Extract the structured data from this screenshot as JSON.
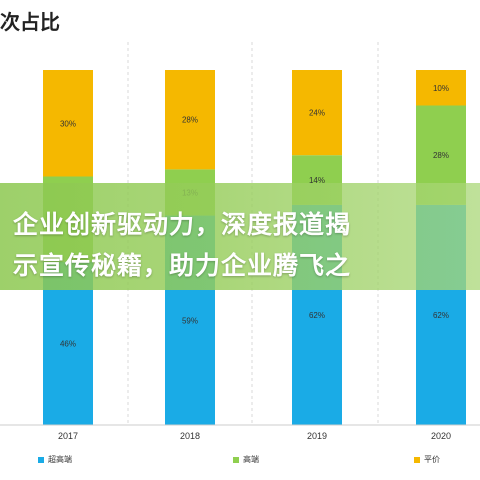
{
  "chart_data": {
    "type": "bar",
    "stacked": true,
    "title": "次占比",
    "categories": [
      "2017",
      "2018",
      "2019",
      "2020"
    ],
    "series": [
      {
        "name": "超高端",
        "color": "#1aabe6",
        "values": [
          46,
          59,
          62,
          62
        ]
      },
      {
        "name": "高端",
        "color": "#8fcf4f",
        "values": [
          null,
          13,
          14,
          28
        ]
      },
      {
        "name": "平价",
        "color": "#f5b800",
        "values": [
          30,
          28,
          24,
          10
        ]
      }
    ],
    "data_labels": {
      "超高端": [
        "46%",
        "59%",
        "62%",
        "62%"
      ],
      "高端": [
        "",
        "13%",
        "14%",
        "28%"
      ],
      "平价": [
        "30%",
        "28%",
        "24%",
        "10%"
      ]
    },
    "grid": "vertical-dashed",
    "legend_position": "bottom-left"
  },
  "overlay": {
    "line1": "企业创新驱动力，深度报道揭",
    "line2": "示宣传秘籍，助力企业腾飞之"
  }
}
